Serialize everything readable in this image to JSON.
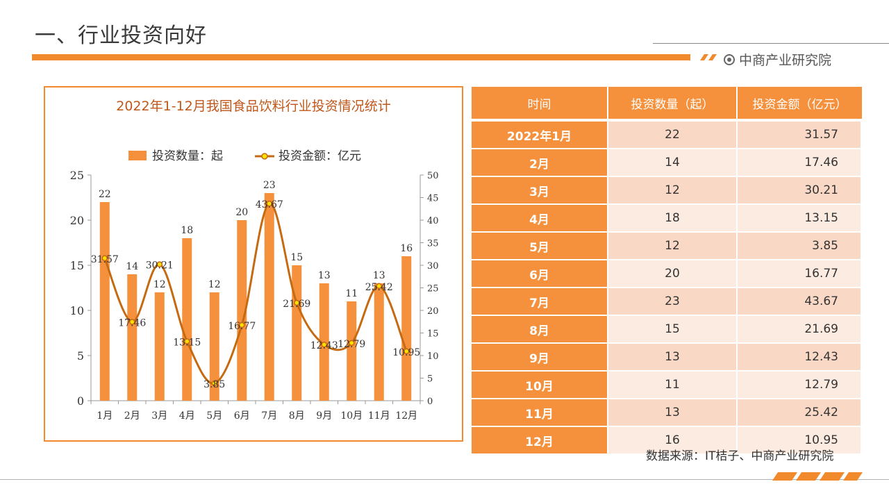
{
  "page": {
    "title": "一、行业投资向好",
    "brand": "中商产业研究院",
    "source": "数据来源：IT桔子、中商产业研究院"
  },
  "colors": {
    "accent": "#f08a2c",
    "bar": "#f5913c",
    "line": "#c66a12",
    "marker": "#ffe000"
  },
  "icons": {
    "brand": "target-circle-icon"
  },
  "chart_data": {
    "type": "bar",
    "title": "2022年1-12月我国食品饮料行业投资情况统计",
    "categories": [
      "1月",
      "2月",
      "3月",
      "4月",
      "5月",
      "6月",
      "7月",
      "8月",
      "9月",
      "10月",
      "11月",
      "12月"
    ],
    "series": [
      {
        "name": "投资数量：起",
        "type": "bar",
        "axis": "left",
        "values": [
          22,
          14,
          12,
          18,
          12,
          20,
          23,
          15,
          13,
          11,
          13,
          16
        ]
      },
      {
        "name": "投资金额：亿元",
        "type": "line",
        "smooth": true,
        "axis": "right",
        "values": [
          31.57,
          17.46,
          30.21,
          13.15,
          3.85,
          16.77,
          43.67,
          21.69,
          12.43,
          12.79,
          25.42,
          10.95
        ]
      }
    ],
    "ylim_left": [
      0,
      25
    ],
    "yticks_left": [
      0,
      5,
      10,
      15,
      20,
      25
    ],
    "ylim_right": [
      0,
      50
    ],
    "yticks_right": [
      0,
      5,
      10,
      15,
      20,
      25,
      30,
      35,
      40,
      45,
      50
    ],
    "legend_position": "top"
  },
  "table": {
    "headers": [
      "时间",
      "投资数量（起）",
      "投资金额（亿元）"
    ],
    "rows": [
      [
        "2022年1月",
        "22",
        "31.57"
      ],
      [
        "2月",
        "14",
        "17.46"
      ],
      [
        "3月",
        "12",
        "30.21"
      ],
      [
        "4月",
        "18",
        "13.15"
      ],
      [
        "5月",
        "12",
        "3.85"
      ],
      [
        "6月",
        "20",
        "16.77"
      ],
      [
        "7月",
        "23",
        "43.67"
      ],
      [
        "8月",
        "15",
        "21.69"
      ],
      [
        "9月",
        "13",
        "12.43"
      ],
      [
        "10月",
        "11",
        "12.79"
      ],
      [
        "11月",
        "13",
        "25.42"
      ],
      [
        "12月",
        "16",
        "10.95"
      ]
    ]
  }
}
